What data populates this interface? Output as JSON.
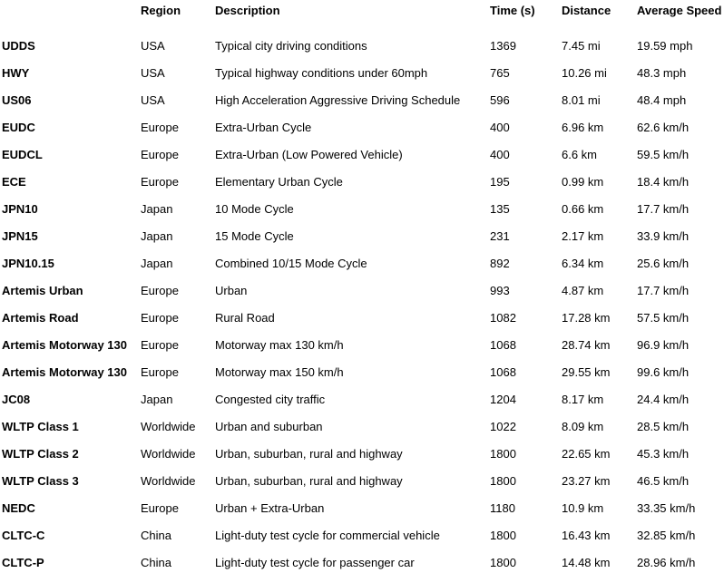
{
  "table": {
    "headers": [
      "",
      "Region",
      "Description",
      "Time (s)",
      "Distance",
      "Average Speed"
    ],
    "rows": [
      [
        "UDDS",
        "USA",
        "Typical city driving conditions",
        "1369",
        "7.45 mi",
        "19.59 mph"
      ],
      [
        "HWY",
        "USA",
        "Typical highway conditions under 60mph",
        "765",
        "10.26 mi",
        "48.3 mph"
      ],
      [
        "US06",
        "USA",
        "High Acceleration Aggressive Driving Schedule",
        "596",
        "8.01 mi",
        "48.4 mph"
      ],
      [
        "EUDC",
        "Europe",
        "Extra-Urban Cycle",
        "400",
        "6.96 km",
        "62.6 km/h"
      ],
      [
        "EUDCL",
        "Europe",
        "Extra-Urban (Low Powered Vehicle)",
        "400",
        "6.6 km",
        "59.5 km/h"
      ],
      [
        "ECE",
        "Europe",
        "Elementary Urban Cycle",
        "195",
        "0.99 km",
        "18.4 km/h"
      ],
      [
        "JPN10",
        "Japan",
        "10 Mode Cycle",
        "135",
        "0.66 km",
        "17.7 km/h"
      ],
      [
        "JPN15",
        "Japan",
        "15 Mode Cycle",
        "231",
        "2.17 km",
        "33.9 km/h"
      ],
      [
        "JPN10.15",
        "Japan",
        "Combined 10/15 Mode Cycle",
        "892",
        "6.34 km",
        "25.6 km/h"
      ],
      [
        "Artemis Urban",
        "Europe",
        "Urban",
        "993",
        "4.87 km",
        "17.7 km/h"
      ],
      [
        "Artemis Road",
        "Europe",
        "Rural Road",
        "1082",
        "17.28 km",
        "57.5 km/h"
      ],
      [
        "Artemis Motorway 130",
        "Europe",
        "Motorway max 130 km/h",
        "1068",
        "28.74 km",
        "96.9 km/h"
      ],
      [
        "Artemis Motorway 130",
        "Europe",
        "Motorway max 150 km/h",
        "1068",
        "29.55 km",
        "99.6 km/h"
      ],
      [
        "JC08",
        "Japan",
        "Congested city traffic",
        "1204",
        "8.17 km",
        "24.4 km/h"
      ],
      [
        "WLTP Class 1",
        "Worldwide",
        "Urban and suburban",
        "1022",
        "8.09 km",
        "28.5 km/h"
      ],
      [
        "WLTP Class 2",
        "Worldwide",
        "Urban, suburban, rural and highway",
        "1800",
        "22.65 km",
        "45.3 km/h"
      ],
      [
        "WLTP Class 3",
        "Worldwide",
        "Urban, suburban, rural and highway",
        "1800",
        "23.27 km",
        "46.5 km/h"
      ],
      [
        "NEDC",
        "Europe",
        "Urban + Extra-Urban",
        "1180",
        "10.9 km",
        "33.35 km/h"
      ],
      [
        "CLTC-C",
        "China",
        "Light-duty test cycle for commercial vehicle",
        "1800",
        "16.43 km",
        "32.85 km/h"
      ],
      [
        "CLTC-P",
        "China",
        "Light-duty test cycle for passenger car",
        "1800",
        "14.48 km",
        "28.96 km/h"
      ]
    ]
  }
}
